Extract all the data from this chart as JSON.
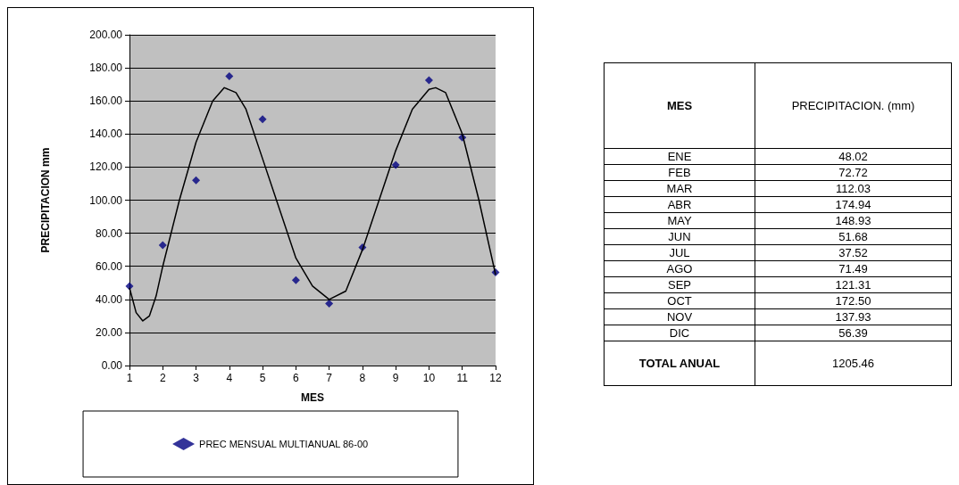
{
  "chart_data": [
    {
      "type": "scatter",
      "xlabel": "MES",
      "ylabel": "PRECIPITACION mm",
      "x": [
        1,
        2,
        3,
        4,
        5,
        6,
        7,
        8,
        9,
        10,
        11,
        12
      ],
      "series": [
        {
          "name": "PREC MENSUAL MULTIANUAL 86-00",
          "color": "#000080",
          "marker": "diamond",
          "values": [
            48.02,
            72.72,
            112.03,
            174.94,
            148.93,
            51.68,
            37.52,
            71.49,
            121.31,
            172.5,
            137.93,
            56.39
          ]
        },
        {
          "type": "line",
          "color": "#000000",
          "marker": "none",
          "x": [
            1,
            1.2,
            1.4,
            1.6,
            1.8,
            2,
            2.5,
            3,
            3.5,
            3.85,
            4.2,
            4.5,
            5,
            5.5,
            6,
            6.5,
            7,
            7.5,
            8,
            8.5,
            9,
            9.5,
            10,
            10.2,
            10.5,
            11,
            11.5,
            12
          ],
          "values": [
            47,
            32,
            27,
            30,
            42,
            60,
            100,
            135,
            160,
            168,
            165,
            155,
            125,
            95,
            65,
            48,
            40,
            45,
            70,
            100,
            130,
            155,
            167,
            168,
            165,
            140,
            100,
            55
          ]
        }
      ],
      "xlim": [
        1,
        12
      ],
      "xticks": [
        1,
        2,
        3,
        4,
        5,
        6,
        7,
        8,
        9,
        10,
        11,
        12
      ],
      "ylim": [
        0,
        200
      ],
      "yticks": [
        {
          "value": 0,
          "label": "0.00"
        },
        {
          "value": 20,
          "label": "20.00"
        },
        {
          "value": 40,
          "label": "40.00"
        },
        {
          "value": 60,
          "label": "60.00"
        },
        {
          "value": 80,
          "label": "80.00"
        },
        {
          "value": 100,
          "label": "100.00"
        },
        {
          "value": 120,
          "label": "120.00"
        },
        {
          "value": 140,
          "label": "140.00"
        },
        {
          "value": 160,
          "label": "160.00"
        },
        {
          "value": 180,
          "label": "180.00"
        },
        {
          "value": 200,
          "label": "200.00"
        }
      ],
      "grid": "y",
      "legend": "bottom"
    },
    {
      "type": "other",
      "annotations": [
        "MES",
        "PRECIPITACION. (mm)"
      ],
      "categories": [
        "ENE",
        "FEB",
        "MAR",
        "ABR",
        "MAY",
        "JUN",
        "JUL",
        "AGO",
        "SEP",
        "OCT",
        "NOV",
        "DIC",
        "TOTAL ANUAL"
      ],
      "values": [
        48.02,
        72.72,
        112.03,
        174.94,
        148.93,
        51.68,
        37.52,
        71.49,
        121.31,
        172.5,
        137.93,
        56.39,
        1205.46
      ],
      "value_labels": [
        "48.02",
        "72.72",
        "112.03",
        "174.94",
        "148.93",
        "51.68",
        "37.52",
        "71.49",
        "121.31",
        "172.50",
        "137.93",
        "56.39",
        "1205.46"
      ]
    }
  ]
}
